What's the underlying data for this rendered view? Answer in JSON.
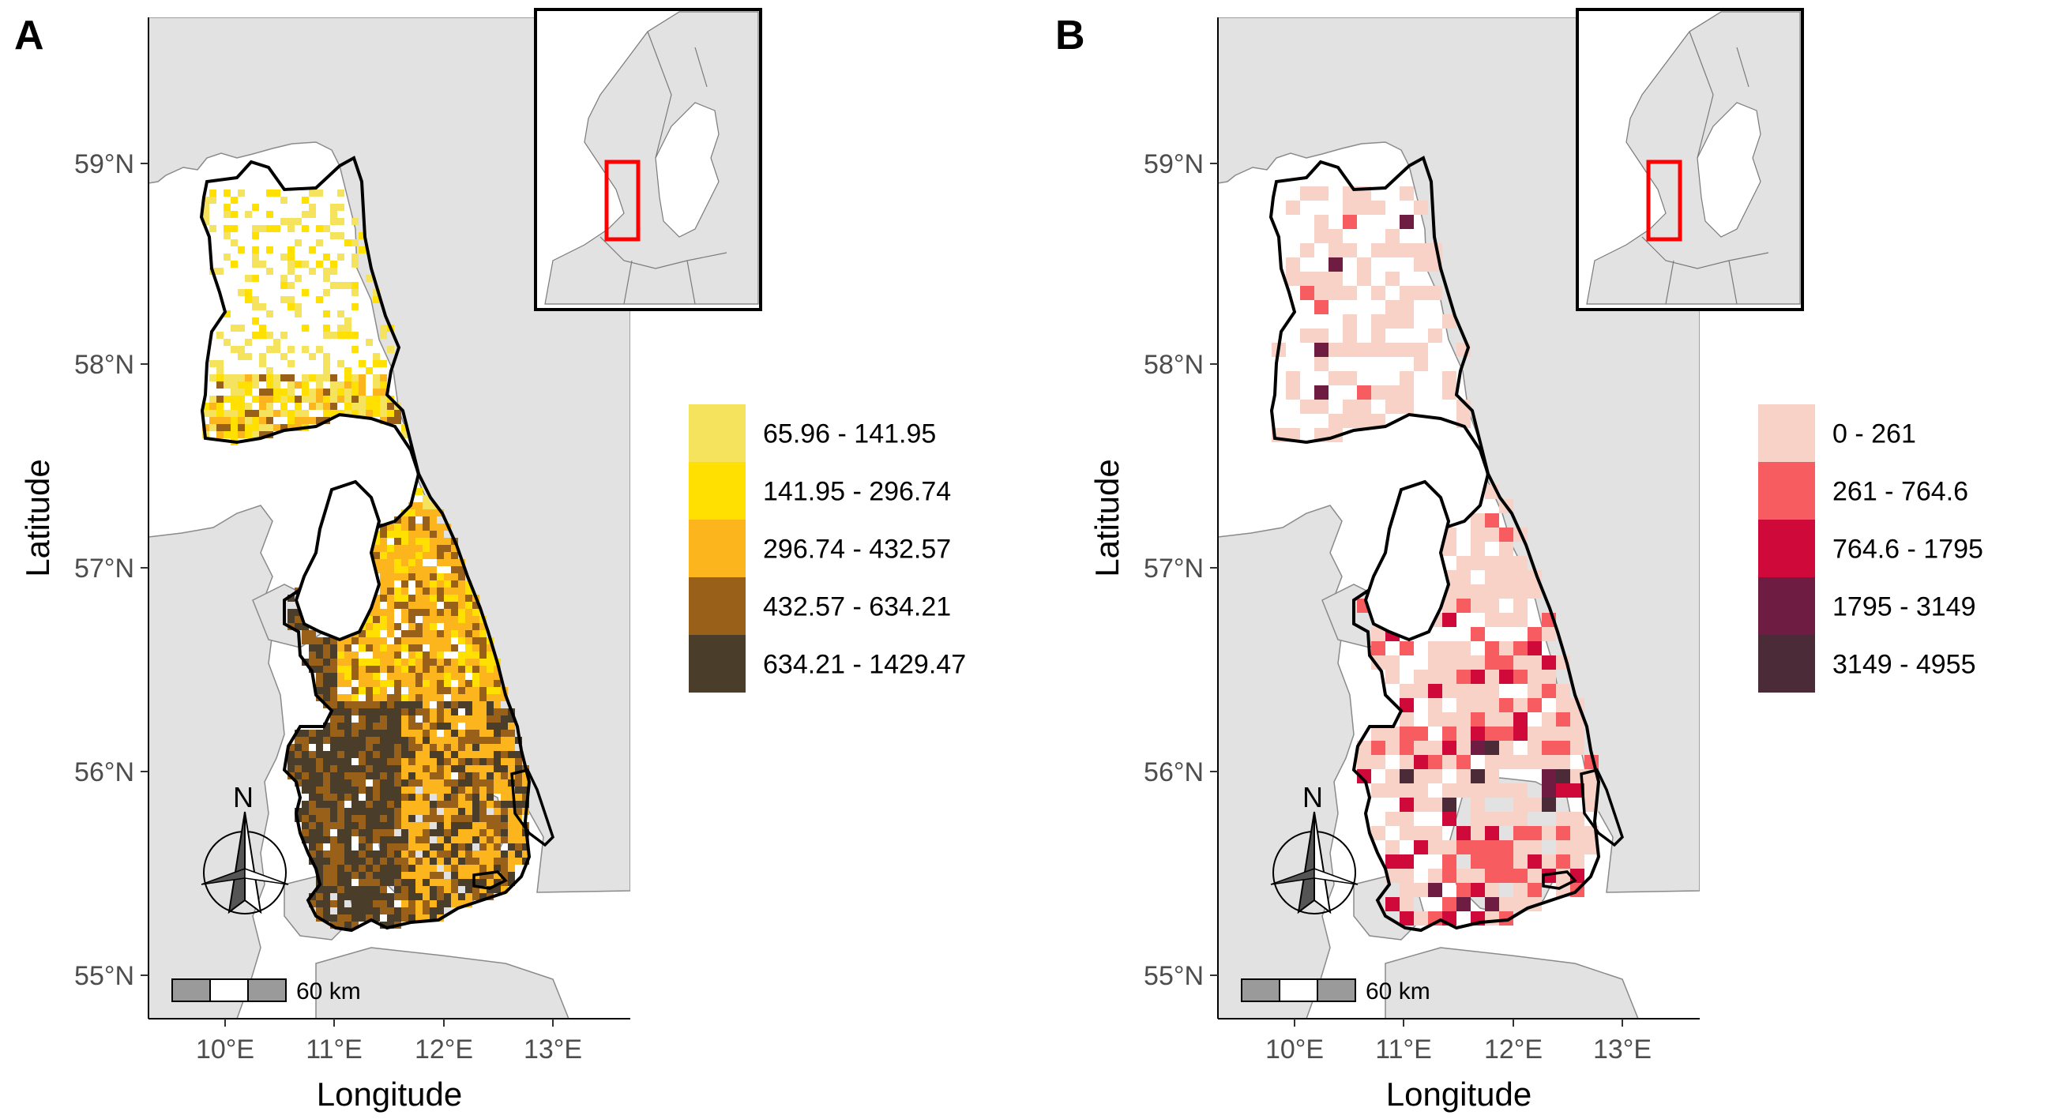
{
  "panels": [
    {
      "id": "A",
      "label": "A",
      "axes": {
        "xlabel": "Longitude",
        "ylabel": "Latitude",
        "xticks": [
          "10°E",
          "11°E",
          "12°E",
          "13°E"
        ],
        "yticks": [
          "55°N",
          "56°N",
          "57°N",
          "58°N",
          "59°N"
        ]
      },
      "scale_bar_label": "60 km",
      "north_label": "N",
      "legend": [
        {
          "label": "65.96 - 141.95",
          "color": "#f5e35e"
        },
        {
          "label": "141.95 - 296.74",
          "color": "#ffe000"
        },
        {
          "label": "296.74 - 432.57",
          "color": "#fdb51e"
        },
        {
          "label": "432.57 - 634.21",
          "color": "#99601a"
        },
        {
          "label": "634.21 - 1429.47",
          "color": "#4a3d2a"
        }
      ]
    },
    {
      "id": "B",
      "label": "B",
      "axes": {
        "xlabel": "Longitude",
        "ylabel": "Latitude",
        "xticks": [
          "10°E",
          "11°E",
          "12°E",
          "13°E"
        ],
        "yticks": [
          "55°N",
          "56°N",
          "57°N",
          "58°N",
          "59°N"
        ]
      },
      "scale_bar_label": "60 km",
      "north_label": "N",
      "legend": [
        {
          "label": "0 - 261",
          "color": "#f8d2c6"
        },
        {
          "label": "261 - 764.6",
          "color": "#f75d60"
        },
        {
          "label": "764.6 - 1795",
          "color": "#cf0a3b"
        },
        {
          "label": "1795 - 3149",
          "color": "#6e1c41"
        },
        {
          "label": "3149 - 4955",
          "color": "#4c2b38"
        }
      ]
    }
  ],
  "map_colors": {
    "land": "#e2e2e2",
    "sea": "#ffffff",
    "coast": "#7f7f7f",
    "study_outline": "#000000",
    "inset_box": "#ff0000"
  }
}
